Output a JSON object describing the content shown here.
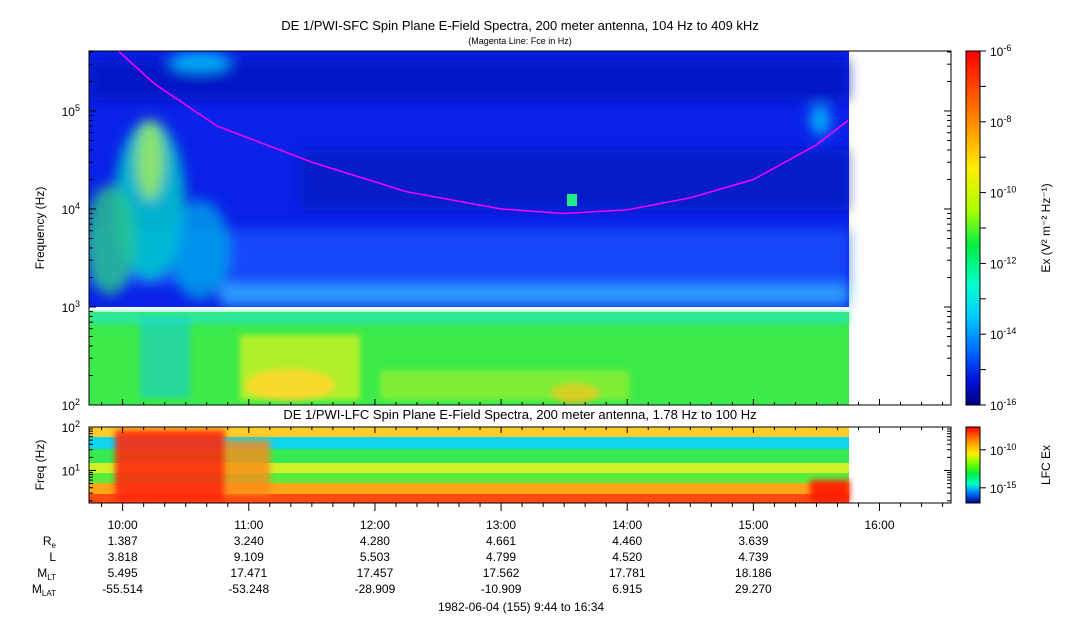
{
  "chart_data": [
    {
      "type": "heatmap",
      "title": "DE 1/PWI-SFC  Spin Plane E-Field Spectra, 200 meter antenna, 104 Hz to 409 kHz",
      "subtitle": "(Magenta Line: Fce in Hz)",
      "ylabel": "Frequency (Hz)",
      "yscale": "log",
      "ylim": [
        100,
        409000
      ],
      "y_ticks": [
        {
          "value": 100,
          "base": "10",
          "exp": "2"
        },
        {
          "value": 1000,
          "base": "10",
          "exp": "3"
        },
        {
          "value": 10000,
          "base": "10",
          "exp": "4"
        },
        {
          "value": 100000,
          "base": "10",
          "exp": "5"
        }
      ],
      "colorbar": {
        "label": "Ex (V² m⁻² Hz⁻¹)",
        "scale": "log",
        "range": [
          1e-16,
          1e-06
        ],
        "ticks": [
          {
            "value": 1e-06,
            "base": "10",
            "exp": "-6"
          },
          {
            "value": 1e-08,
            "base": "10",
            "exp": "-8"
          },
          {
            "value": 1e-10,
            "base": "10",
            "exp": "-10"
          },
          {
            "value": 1e-12,
            "base": "10",
            "exp": "-12"
          },
          {
            "value": 1e-14,
            "base": "10",
            "exp": "-14"
          },
          {
            "value": 1e-16,
            "base": "10",
            "exp": "-16"
          }
        ]
      },
      "gap_band_hz": [
        880,
        1050
      ],
      "fce_line": {
        "color": "#ff00ff",
        "points": [
          {
            "t": "09:58",
            "f": 409000
          },
          {
            "t": "10:15",
            "f": 190000
          },
          {
            "t": "10:45",
            "f": 70000
          },
          {
            "t": "11:30",
            "f": 30000
          },
          {
            "t": "12:15",
            "f": 15000
          },
          {
            "t": "13:00",
            "f": 10000
          },
          {
            "t": "13:30",
            "f": 9000
          },
          {
            "t": "14:00",
            "f": 9800
          },
          {
            "t": "14:30",
            "f": 13000
          },
          {
            "t": "15:00",
            "f": 20000
          },
          {
            "t": "15:30",
            "f": 45000
          },
          {
            "t": "15:45",
            "f": 80000
          }
        ]
      },
      "data_end_time": "15:45"
    },
    {
      "type": "heatmap",
      "title": "DE 1/PWI-LFC  Spin Plane E-Field Spectra, 200 meter antenna, 1.78 Hz to 100 Hz",
      "ylabel": "Freq (Hz)",
      "yscale": "log",
      "ylim": [
        1.78,
        100
      ],
      "y_ticks": [
        {
          "value": 10,
          "base": "10",
          "exp": "1"
        },
        {
          "value": 100,
          "base": "10",
          "exp": "2"
        }
      ],
      "colorbar": {
        "label": "LFC Ex",
        "scale": "log",
        "range": [
          1e-17,
          1e-07
        ],
        "ticks": [
          {
            "value": 1e-10,
            "base": "10",
            "exp": "-10"
          },
          {
            "value": 1e-15,
            "base": "10",
            "exp": "-15"
          }
        ]
      },
      "data_end_time": "15:45"
    }
  ],
  "time_axis": {
    "start": "09:44",
    "end": "16:34",
    "ticks": [
      "10:00",
      "11:00",
      "12:00",
      "13:00",
      "14:00",
      "15:00",
      "16:00"
    ]
  },
  "ephemeris": {
    "rows": [
      {
        "label": "R",
        "sub": "e",
        "values": [
          "1.387",
          "3.240",
          "4.280",
          "4.661",
          "4.460",
          "3.639"
        ]
      },
      {
        "label": "L",
        "sub": "",
        "values": [
          "3.818",
          "9.109",
          "5.503",
          "4.799",
          "4.520",
          "4.739"
        ]
      },
      {
        "label": "M",
        "sub": "LT",
        "values": [
          "5.495",
          "17.471",
          "17.457",
          "17.562",
          "17.781",
          "18.186"
        ]
      },
      {
        "label": "M",
        "sub": "LAT",
        "values": [
          "-55.514",
          "-53.248",
          "-28.909",
          "-10.909",
          "6.915",
          "29.270"
        ]
      }
    ]
  },
  "footer": "1982-06-04 (155) 9:44 to 16:34",
  "colors": {
    "fce_line": "#ff00ff",
    "frame": "#000000",
    "background": "#ffffff"
  }
}
